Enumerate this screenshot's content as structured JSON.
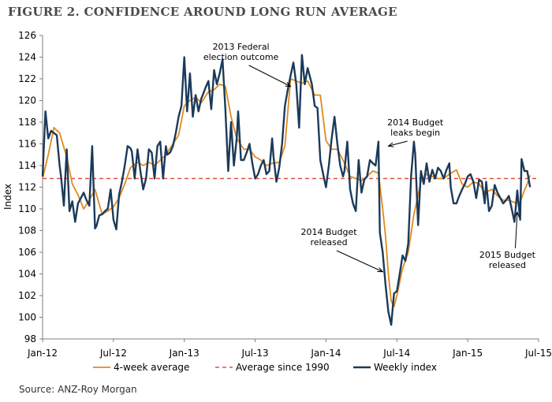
{
  "title": "FIGURE 2. CONFIDENCE AROUND LONG RUN AVERAGE",
  "source": "Source: ANZ-Roy Morgan",
  "chart_data": {
    "type": "line",
    "ylabel": "Index",
    "ylim": [
      98,
      126
    ],
    "yticks": [
      98,
      100,
      102,
      104,
      106,
      108,
      110,
      112,
      114,
      116,
      118,
      120,
      122,
      124,
      126
    ],
    "xlim": [
      "2012-01",
      "2015-07"
    ],
    "xticks": [
      "Jan-12",
      "Jul-12",
      "Jan-13",
      "Jul-13",
      "Jan-14",
      "Jul-14",
      "Jan-15",
      "Jul-15"
    ],
    "grid": false,
    "legend": "bottom",
    "colors": {
      "four_week": "#e08a1e",
      "long_run": "#e0503c",
      "weekly": "#1b3a5a"
    },
    "series": [
      {
        "name": "Weekly index",
        "x": [
          2012.0,
          2012.02,
          2012.04,
          2012.06,
          2012.08,
          2012.1,
          2012.12,
          2012.13,
          2012.15,
          2012.17,
          2012.19,
          2012.21,
          2012.23,
          2012.25,
          2012.27,
          2012.29,
          2012.31,
          2012.33,
          2012.35,
          2012.37,
          2012.38,
          2012.4,
          2012.42,
          2012.44,
          2012.46,
          2012.48,
          2012.5,
          2012.52,
          2012.54,
          2012.56,
          2012.58,
          2012.6,
          2012.62,
          2012.63,
          2012.65,
          2012.67,
          2012.69,
          2012.71,
          2012.73,
          2012.75,
          2012.77,
          2012.79,
          2012.81,
          2012.83,
          2012.85,
          2012.87,
          2012.88,
          2012.9,
          2012.92,
          2012.94,
          2012.96,
          2012.98,
          2013.0,
          2013.02,
          2013.04,
          2013.06,
          2013.08,
          2013.1,
          2013.12,
          2013.13,
          2013.15,
          2013.17,
          2013.19,
          2013.21,
          2013.23,
          2013.25,
          2013.27,
          2013.29,
          2013.31,
          2013.33,
          2013.35,
          2013.37,
          2013.38,
          2013.4,
          2013.42,
          2013.44,
          2013.46,
          2013.48,
          2013.5,
          2013.52,
          2013.54,
          2013.56,
          2013.58,
          2013.6,
          2013.62,
          2013.63,
          2013.65,
          2013.67,
          2013.69,
          2013.71,
          2013.73,
          2013.75,
          2013.77,
          2013.79,
          2013.81,
          2013.83,
          2013.85,
          2013.87,
          2013.88,
          2013.9,
          2013.92,
          2013.94,
          2013.96,
          2013.98,
          2014.0,
          2014.02,
          2014.04,
          2014.06,
          2014.08,
          2014.1,
          2014.12,
          2014.13,
          2014.15,
          2014.17,
          2014.19,
          2014.21,
          2014.23,
          2014.25,
          2014.27,
          2014.29,
          2014.31,
          2014.33,
          2014.35,
          2014.37,
          2014.38,
          2014.4,
          2014.42,
          2014.44,
          2014.46,
          2014.48,
          2014.5,
          2014.52,
          2014.54,
          2014.56,
          2014.58,
          2014.6,
          2014.62,
          2014.63,
          2014.65,
          2014.67,
          2014.69,
          2014.71,
          2014.73,
          2014.75,
          2014.77,
          2014.79,
          2014.81,
          2014.83,
          2014.85,
          2014.87,
          2014.88,
          2014.9,
          2014.92,
          2014.94,
          2014.96,
          2014.98,
          2015.0,
          2015.02,
          2015.04,
          2015.06,
          2015.08,
          2015.1,
          2015.12,
          2015.13,
          2015.15,
          2015.17,
          2015.19,
          2015.21,
          2015.23,
          2015.25,
          2015.27,
          2015.29,
          2015.31,
          2015.33,
          2015.35,
          2015.37,
          2015.38,
          2015.4,
          2015.42,
          2015.44
        ],
        "values": [
          113.0,
          119.0,
          116.5,
          117.2,
          117.0,
          116.8,
          114.0,
          113.0,
          110.3,
          115.5,
          109.8,
          110.7,
          108.8,
          110.5,
          111.0,
          111.5,
          110.8,
          110.3,
          115.8,
          108.2,
          108.4,
          109.4,
          109.5,
          109.8,
          110.0,
          111.8,
          109.0,
          108.1,
          111.3,
          112.5,
          114.0,
          115.8,
          115.6,
          115.3,
          112.8,
          115.5,
          113.5,
          111.8,
          112.8,
          115.5,
          115.2,
          112.8,
          115.8,
          116.2,
          112.8,
          115.8,
          115.0,
          115.2,
          115.8,
          117.0,
          118.5,
          119.5,
          124.0,
          119.0,
          122.5,
          118.5,
          120.5,
          119.0,
          120.2,
          120.5,
          121.2,
          121.8,
          119.2,
          122.8,
          121.5,
          122.5,
          123.8,
          119.2,
          113.5,
          118.0,
          114.0,
          116.5,
          119.0,
          114.5,
          114.5,
          115.2,
          116.0,
          114.2,
          112.8,
          113.2,
          114.0,
          114.5,
          113.2,
          113.5,
          116.5,
          114.8,
          112.5,
          113.8,
          116.0,
          119.5,
          121.0,
          122.3,
          123.5,
          121.5,
          117.5,
          124.2,
          121.5,
          123.0,
          122.5,
          121.5,
          119.5,
          119.3,
          114.5,
          113.2,
          112.0,
          114.0,
          116.5,
          118.5,
          116.0,
          114.0,
          113.0,
          113.5,
          116.2,
          111.8,
          110.5,
          109.8,
          114.5,
          111.5,
          112.7,
          113.0,
          114.5,
          114.2,
          114.0,
          116.2,
          107.8,
          106.0,
          103.0,
          100.5,
          99.3,
          102.2,
          102.4,
          104.0,
          105.7,
          105.2,
          106.8,
          113.0,
          116.2,
          115.0,
          108.5,
          113.5,
          112.3,
          114.2,
          112.5,
          113.6,
          112.8,
          113.8,
          113.5,
          112.8,
          113.6,
          114.2,
          112.0,
          110.5,
          110.5,
          111.2,
          111.8,
          112.3,
          113.0,
          113.2,
          112.5,
          111.0,
          112.7,
          112.5,
          110.5,
          112.5,
          109.8,
          110.3,
          112.2,
          111.5,
          111.0,
          110.5,
          110.8,
          111.2,
          110.0,
          108.8,
          111.7,
          109.0,
          114.6,
          113.5,
          113.5,
          112.0
        ]
      },
      {
        "name": "4-week average",
        "x": [
          2012.0,
          2012.04,
          2012.08,
          2012.12,
          2012.17,
          2012.21,
          2012.25,
          2012.29,
          2012.33,
          2012.37,
          2012.42,
          2012.46,
          2012.5,
          2012.54,
          2012.58,
          2012.62,
          2012.67,
          2012.71,
          2012.75,
          2012.79,
          2012.83,
          2012.87,
          2012.92,
          2012.96,
          2013.0,
          2013.04,
          2013.08,
          2013.12,
          2013.17,
          2013.21,
          2013.25,
          2013.29,
          2013.33,
          2013.37,
          2013.42,
          2013.46,
          2013.5,
          2013.54,
          2013.58,
          2013.62,
          2013.67,
          2013.71,
          2013.75,
          2013.79,
          2013.83,
          2013.87,
          2013.92,
          2013.96,
          2014.0,
          2014.04,
          2014.08,
          2014.12,
          2014.17,
          2014.21,
          2014.25,
          2014.29,
          2014.33,
          2014.37,
          2014.4,
          2014.42,
          2014.44,
          2014.46,
          2014.48,
          2014.5,
          2014.54,
          2014.58,
          2014.62,
          2014.67,
          2014.71,
          2014.75,
          2014.79,
          2014.83,
          2014.87,
          2014.92,
          2014.96,
          2015.0,
          2015.04,
          2015.08,
          2015.12,
          2015.17,
          2015.21,
          2015.25,
          2015.29,
          2015.33,
          2015.37,
          2015.4,
          2015.42,
          2015.44
        ],
        "values": [
          112.8,
          115.0,
          117.5,
          117.0,
          114.8,
          112.3,
          111.3,
          110.0,
          110.8,
          111.8,
          109.5,
          109.8,
          110.2,
          111.0,
          112.3,
          113.8,
          114.3,
          114.0,
          114.3,
          114.0,
          114.5,
          115.0,
          116.0,
          116.8,
          119.5,
          120.0,
          120.3,
          119.8,
          120.8,
          121.0,
          121.5,
          121.3,
          118.5,
          116.5,
          115.5,
          115.5,
          114.8,
          114.5,
          114.0,
          114.2,
          114.3,
          115.8,
          122.0,
          121.8,
          121.6,
          121.8,
          120.5,
          120.5,
          116.3,
          115.5,
          115.5,
          114.5,
          113.0,
          112.8,
          112.6,
          113.0,
          113.5,
          113.3,
          110.0,
          107.5,
          104.0,
          101.5,
          101.0,
          102.0,
          104.5,
          106.0,
          109.5,
          112.5,
          113.2,
          113.0,
          112.8,
          112.8,
          113.2,
          113.6,
          112.3,
          112.0,
          112.5,
          112.3,
          111.5,
          111.8,
          111.2,
          110.8,
          110.8,
          110.6,
          110.6,
          111.7,
          112.3,
          113.1
        ]
      },
      {
        "name": "Average since 1990",
        "values": [
          112.8
        ]
      }
    ],
    "annotations": [
      {
        "lines": [
          "2013 Federal",
          "election outcome"
        ],
        "x": 2013.4,
        "y": 124.7,
        "arrow_to": [
          2013.75,
          121.3
        ]
      },
      {
        "lines": [
          "2014 Budget",
          "leaks begin"
        ],
        "x": 2014.63,
        "y": 117.7,
        "arrow_to": [
          2014.44,
          115.8
        ]
      },
      {
        "lines": [
          "2014 Budget",
          "released"
        ],
        "x": 2014.02,
        "y": 107.6,
        "arrow_to": [
          2014.4,
          104.2
        ]
      },
      {
        "lines": [
          "2015 Budget",
          "released"
        ],
        "x": 2015.28,
        "y": 105.5,
        "arrow_to": [
          2015.35,
          109.7
        ]
      }
    ]
  }
}
